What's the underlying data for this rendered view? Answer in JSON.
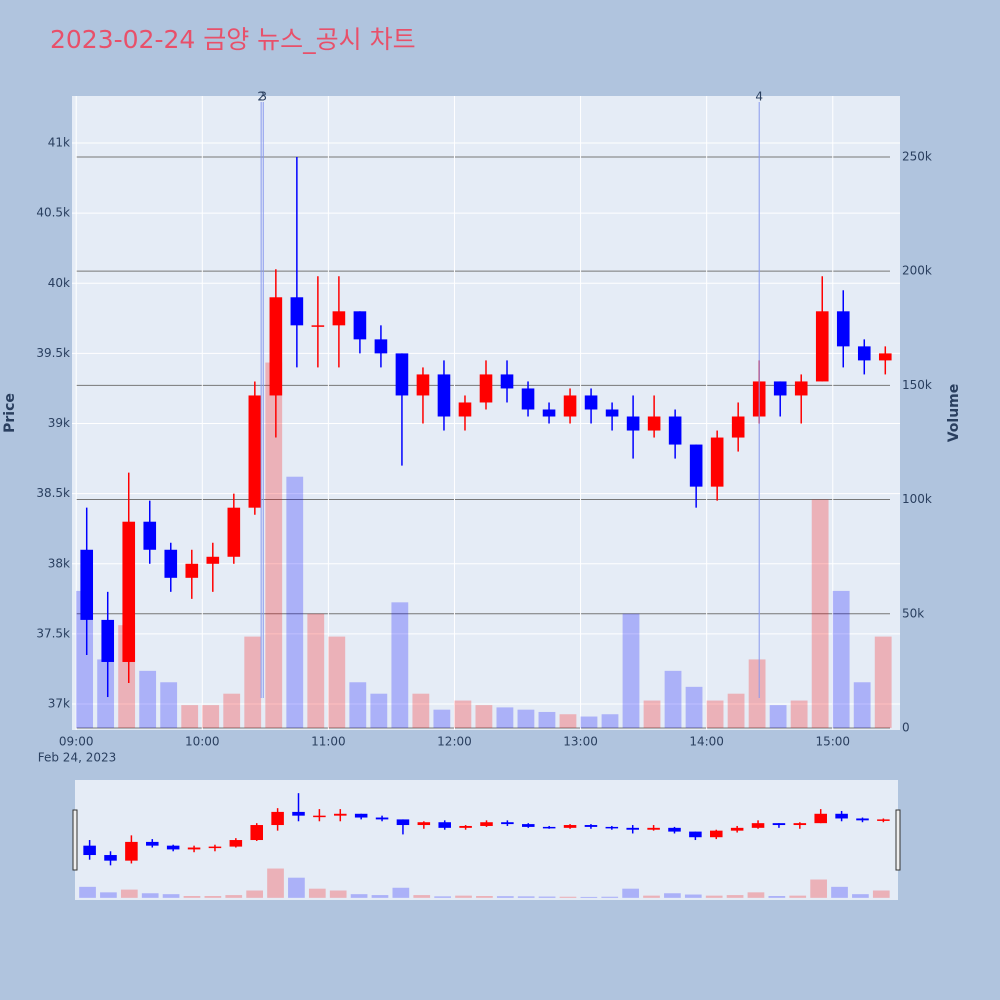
{
  "chart_data": {
    "type": "candlestick",
    "title": "2023-02-24 금양 뉴스_공시 차트",
    "x_date_label": "Feb 24, 2023",
    "y_label": "Price",
    "y2_label": "Volume",
    "increasing_color": "#ff0000",
    "decreasing_color": "#0000ff",
    "x": [
      "09:00",
      "09:10",
      "09:20",
      "09:30",
      "09:40",
      "09:50",
      "10:00",
      "10:10",
      "10:20",
      "10:30",
      "10:40",
      "10:50",
      "11:00",
      "11:10",
      "11:20",
      "11:30",
      "11:40",
      "11:50",
      "12:00",
      "12:10",
      "12:20",
      "12:30",
      "12:40",
      "12:50",
      "13:00",
      "13:10",
      "13:20",
      "13:30",
      "13:40",
      "13:50",
      "14:00",
      "14:10",
      "14:20",
      "14:30",
      "14:40",
      "14:50",
      "15:00",
      "15:10",
      "15:20"
    ],
    "open": [
      38100,
      37600,
      37300,
      38300,
      38100,
      37900,
      38000,
      38050,
      38400,
      39200,
      39900,
      39700,
      39700,
      39800,
      39600,
      39500,
      39200,
      39350,
      39050,
      39150,
      39350,
      39250,
      39100,
      39050,
      39200,
      39100,
      39050,
      38950,
      39050,
      38850,
      38550,
      38900,
      39050,
      39300,
      39200,
      39300,
      39800,
      39550,
      39450
    ],
    "high": [
      38400,
      37800,
      38650,
      38450,
      38150,
      38100,
      38150,
      38500,
      39300,
      40100,
      40900,
      40050,
      40050,
      39800,
      39700,
      39500,
      39400,
      39450,
      39200,
      39450,
      39450,
      39300,
      39150,
      39250,
      39250,
      39150,
      39200,
      39200,
      39100,
      38850,
      38950,
      39150,
      39450,
      39300,
      39350,
      40050,
      39950,
      39600,
      39550
    ],
    "low": [
      37350,
      37050,
      37150,
      38000,
      37800,
      37750,
      37800,
      38000,
      38350,
      38900,
      39400,
      39400,
      39400,
      39500,
      39400,
      38700,
      39000,
      38950,
      38950,
      39100,
      39150,
      39050,
      39000,
      39000,
      39000,
      38950,
      38750,
      38900,
      38750,
      38400,
      38450,
      38800,
      39000,
      39050,
      39000,
      39300,
      39400,
      39350,
      39350
    ],
    "close": [
      37600,
      37300,
      38300,
      38100,
      37900,
      38000,
      38050,
      38400,
      39200,
      39900,
      39700,
      39700,
      39800,
      39600,
      39500,
      39200,
      39350,
      39050,
      39150,
      39350,
      39250,
      39100,
      39050,
      39200,
      39100,
      39050,
      38950,
      39050,
      38850,
      38550,
      38900,
      39050,
      39300,
      39200,
      39300,
      39800,
      39550,
      39450,
      39500
    ],
    "volume": [
      60000,
      30000,
      45000,
      25000,
      20000,
      10000,
      10000,
      15000,
      40000,
      160000,
      110000,
      50000,
      40000,
      20000,
      15000,
      55000,
      15000,
      8000,
      12000,
      10000,
      9000,
      8000,
      7000,
      6000,
      5000,
      6000,
      50000,
      12000,
      25000,
      18000,
      12000,
      15000,
      30000,
      10000,
      12000,
      100000,
      60000,
      20000,
      40000
    ],
    "xlim": [
      "08:58",
      "15:32"
    ],
    "xticks": [
      "09:00",
      "10:00",
      "11:00",
      "12:00",
      "13:00",
      "14:00",
      "15:00"
    ],
    "ylim": [
      36815,
      41335
    ],
    "yticks": [
      {
        "value": 37000,
        "label": "37k"
      },
      {
        "value": 37500,
        "label": "37.5k"
      },
      {
        "value": 38000,
        "label": "38k"
      },
      {
        "value": 38500,
        "label": "38.5k"
      },
      {
        "value": 39000,
        "label": "39k"
      },
      {
        "value": 39500,
        "label": "39.5k"
      },
      {
        "value": 40000,
        "label": "40k"
      },
      {
        "value": 40500,
        "label": "40.5k"
      },
      {
        "value": 41000,
        "label": "41k"
      }
    ],
    "y2lim": [
      -900,
      276700
    ],
    "y2ticks": [
      0,
      {
        "value": 50000,
        "label": "50k"
      },
      {
        "value": 100000,
        "label": "100k"
      },
      {
        "value": 150000,
        "label": "150k"
      },
      {
        "value": 200000,
        "label": "200k"
      },
      {
        "value": 250000,
        "label": "250k"
      }
    ],
    "annotations": [
      {
        "x": "10:28",
        "text": "2"
      },
      {
        "x": "10:29",
        "text": "3"
      },
      {
        "x": "14:25",
        "text": "4"
      }
    ]
  }
}
